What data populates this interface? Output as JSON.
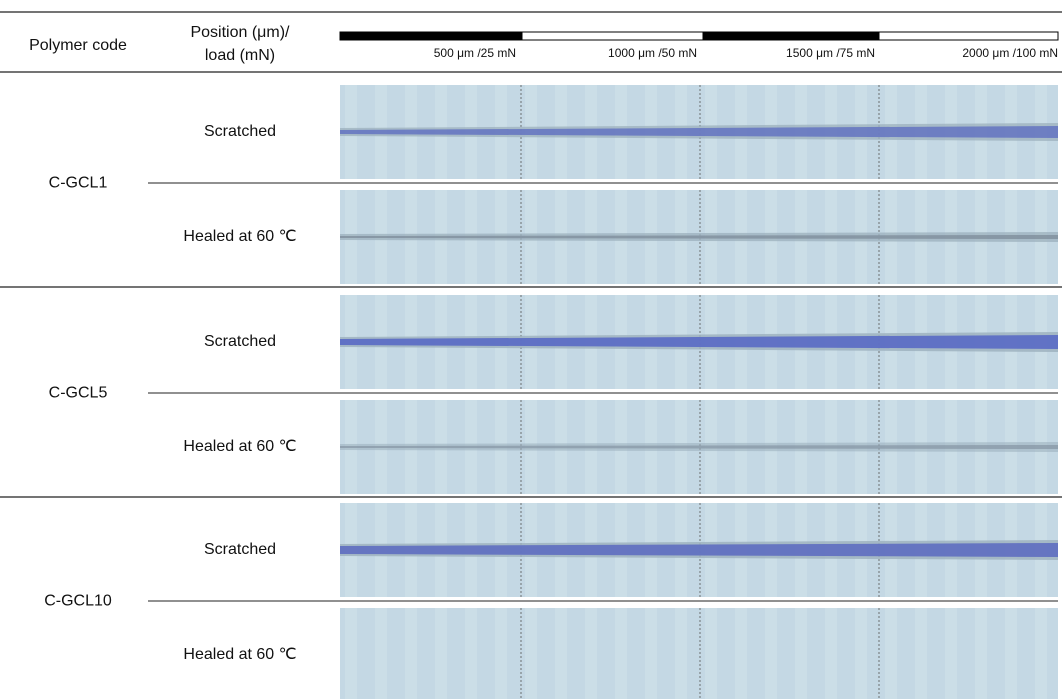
{
  "header": {
    "polymer_code": "Polymer code",
    "position_load": [
      "Position (μm)/",
      "load (mN)"
    ],
    "scale_labels": [
      "500 μm /25 mN",
      "1000 μm /50 mN",
      "1500 μm /75 mN",
      "2000 μm /100 mN"
    ]
  },
  "groups": [
    {
      "code": "C-GCL1",
      "rows": [
        "Scratched",
        "Healed at 60 ℃"
      ]
    },
    {
      "code": "C-GCL5",
      "rows": [
        "Scratched",
        "Healed at 60 ℃"
      ]
    },
    {
      "code": "C-GCL10",
      "rows": [
        "Scratched",
        "Healed at 60 ℃"
      ]
    }
  ]
}
